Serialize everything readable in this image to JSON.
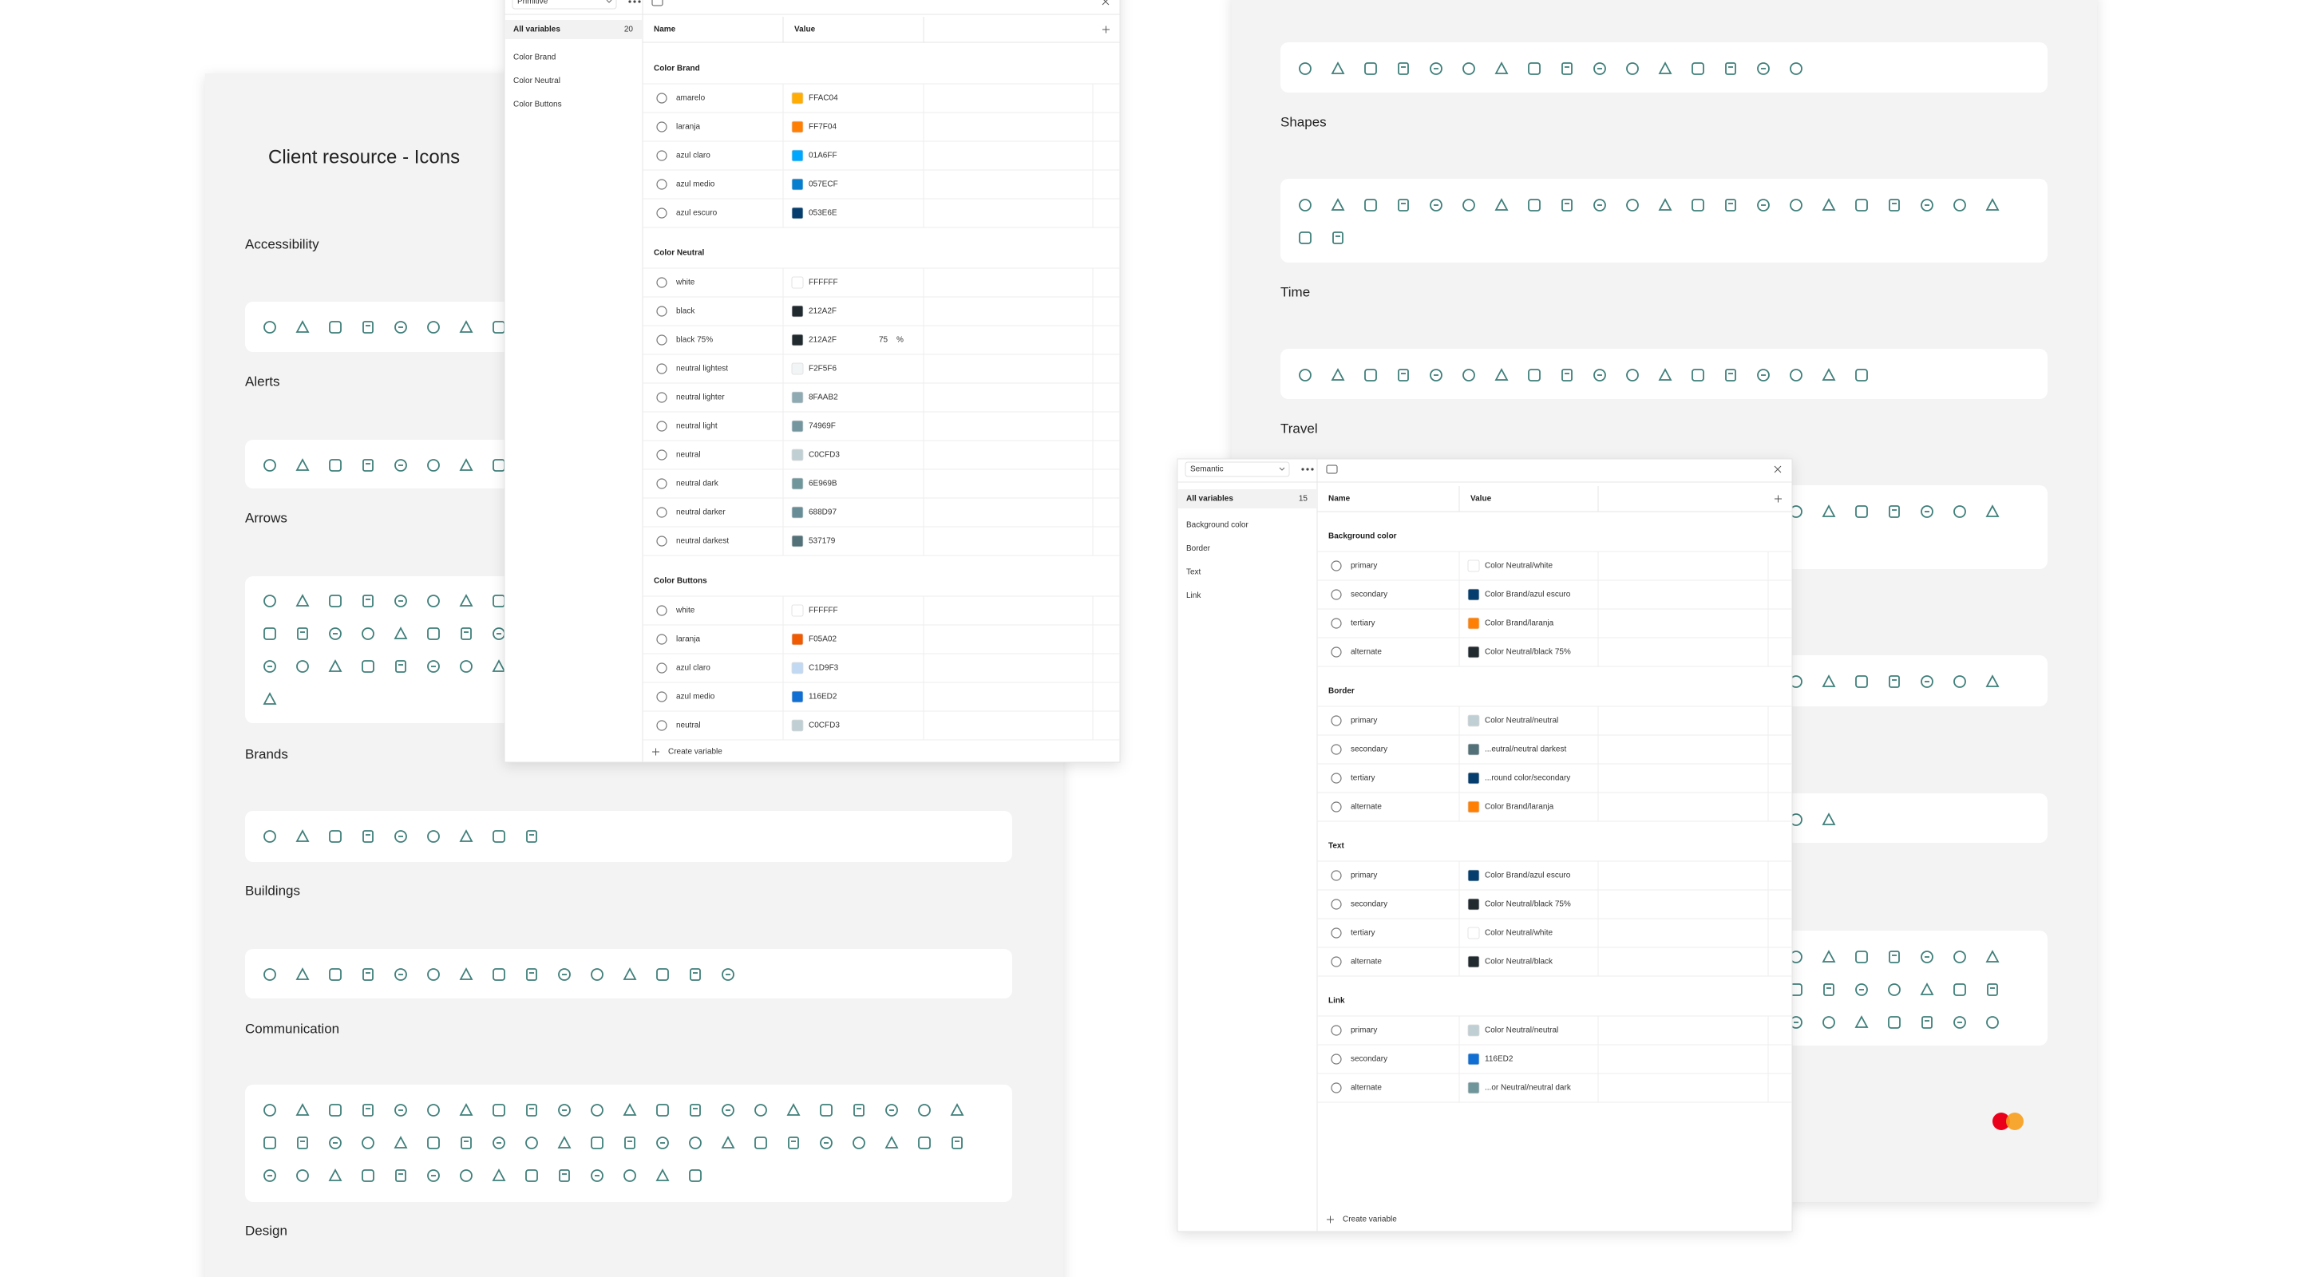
{
  "board_left": {
    "title": "Client resource - Icons",
    "sections": [
      "Accessibility",
      "Alerts",
      "Arrows",
      "Brands",
      "Buildings",
      "Communication",
      "Design"
    ]
  },
  "board_right": {
    "sections": [
      "Shapes",
      "Time",
      "Travel"
    ]
  },
  "primitive": {
    "mode": "Primitive",
    "sidebar_title": "All variables",
    "count": "20",
    "sidebar_items": [
      "Color Brand",
      "Color Neutral",
      "Color Buttons"
    ],
    "columns": [
      "Name",
      "Value"
    ],
    "groups": [
      {
        "name": "Color Brand",
        "rows": [
          {
            "name": "amarelo",
            "value": "FFAC04"
          },
          {
            "name": "laranja",
            "value": "FF7F04"
          },
          {
            "name": "azul claro",
            "value": "01A6FF"
          },
          {
            "name": "azul medio",
            "value": "057ECF"
          },
          {
            "name": "azul escuro",
            "value": "053E6E"
          }
        ]
      },
      {
        "name": "Color Neutral",
        "rows": [
          {
            "name": "white",
            "value": "FFFFFF"
          },
          {
            "name": "black",
            "value": "212A2F"
          },
          {
            "name": "black 75%",
            "value": "212A2F",
            "alpha": "75",
            "alpha_unit": "%"
          },
          {
            "name": "neutral lightest",
            "value": "F2F5F6"
          },
          {
            "name": "neutral lighter",
            "value": "8FAAB2"
          },
          {
            "name": "neutral light",
            "value": "74969F"
          },
          {
            "name": "neutral",
            "value": "C0CFD3"
          },
          {
            "name": "neutral dark",
            "value": "6E969B"
          },
          {
            "name": "neutral darker",
            "value": "688D97"
          },
          {
            "name": "neutral darkest",
            "value": "537179"
          }
        ]
      },
      {
        "name": "Color Buttons",
        "rows": [
          {
            "name": "white",
            "value": "FFFFFF"
          },
          {
            "name": "laranja",
            "value": "F05A02"
          },
          {
            "name": "azul claro",
            "value": "C1D9F3"
          },
          {
            "name": "azul medio",
            "value": "116ED2"
          },
          {
            "name": "neutral",
            "value": "C0CFD3"
          }
        ]
      }
    ],
    "create": "Create variable"
  },
  "semantic": {
    "mode": "Semantic",
    "sidebar_title": "All variables",
    "count": "15",
    "sidebar_items": [
      "Background color",
      "Border",
      "Text",
      "Link"
    ],
    "columns": [
      "Name",
      "Value"
    ],
    "groups": [
      {
        "name": "Background color",
        "rows": [
          {
            "name": "primary",
            "value": "Color Neutral/white",
            "swatch": "#FFFFFF"
          },
          {
            "name": "secondary",
            "value": "Color Brand/azul escuro",
            "swatch": "#053E6E"
          },
          {
            "name": "tertiary",
            "value": "Color Brand/laranja",
            "swatch": "#FF7F04"
          },
          {
            "name": "alternate",
            "value": "Color Neutral/black 75%",
            "swatch": "#212A2F"
          }
        ]
      },
      {
        "name": "Border",
        "rows": [
          {
            "name": "primary",
            "value": "Color Neutral/neutral",
            "swatch": "#C0CFD3"
          },
          {
            "name": "secondary",
            "value": "...eutral/neutral darkest",
            "swatch": "#537179"
          },
          {
            "name": "tertiary",
            "value": "...round color/secondary",
            "swatch": "#053E6E"
          },
          {
            "name": "alternate",
            "value": "Color Brand/laranja",
            "swatch": "#FF7F04"
          }
        ]
      },
      {
        "name": "Text",
        "rows": [
          {
            "name": "primary",
            "value": "Color Brand/azul escuro",
            "swatch": "#053E6E"
          },
          {
            "name": "secondary",
            "value": "Color Neutral/black 75%",
            "swatch": "#212A2F"
          },
          {
            "name": "tertiary",
            "value": "Color Neutral/white",
            "swatch": "#FFFFFF"
          },
          {
            "name": "alternate",
            "value": "Color Neutral/black",
            "swatch": "#212A2F"
          }
        ]
      },
      {
        "name": "Link",
        "rows": [
          {
            "name": "primary",
            "value": "Color Neutral/neutral",
            "swatch": "#C0CFD3"
          },
          {
            "name": "secondary",
            "value": "116ED2",
            "swatch": "#116ED2"
          },
          {
            "name": "alternate",
            "value": "...or Neutral/neutral dark",
            "swatch": "#6E969B"
          }
        ]
      }
    ],
    "create": "Create variable"
  }
}
